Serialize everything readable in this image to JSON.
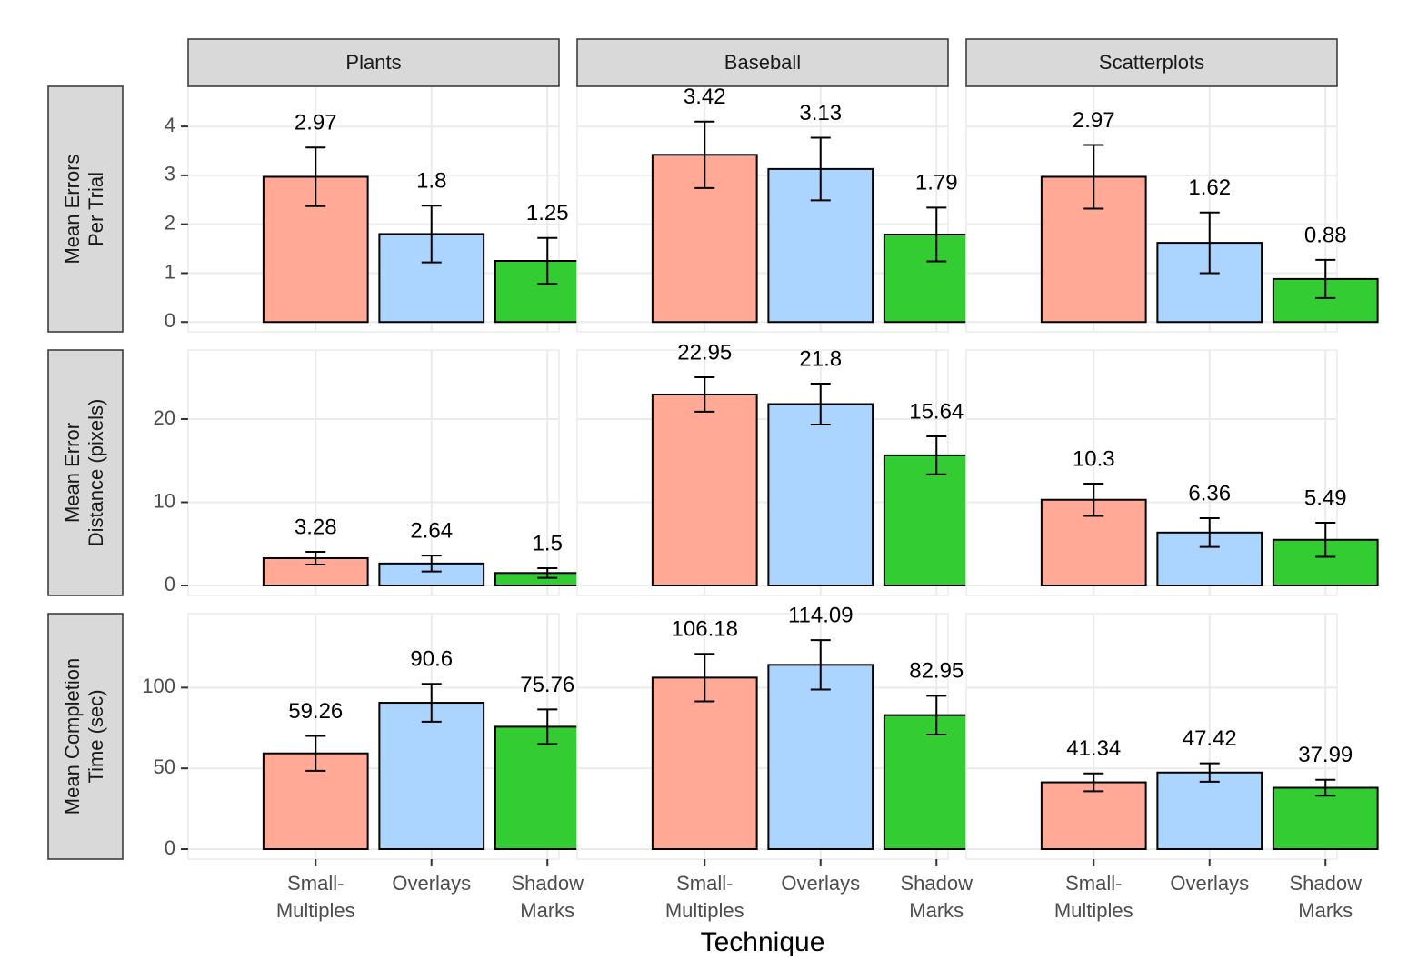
{
  "chart_data": [
    {
      "type": "bar",
      "title": "Plants",
      "ylabel": "Mean Errors\nPer Trial",
      "values": [
        2.97,
        1.8,
        1.25
      ],
      "errors": [
        0.6,
        0.58,
        0.47
      ],
      "colors": [
        "#ffa996",
        "#abd5ff",
        "#33cc33"
      ],
      "ylim": [
        -0.2,
        4.82
      ],
      "yticks": [
        0,
        1,
        2,
        3,
        4
      ]
    },
    {
      "type": "bar",
      "title": "Baseball",
      "values": [
        3.42,
        3.13,
        1.79
      ],
      "errors": [
        0.68,
        0.64,
        0.55
      ],
      "colors": [
        "#ffa996",
        "#abd5ff",
        "#33cc33"
      ],
      "ylim": [
        -0.2,
        4.82
      ],
      "yticks": [
        0,
        1,
        2,
        3,
        4
      ]
    },
    {
      "type": "bar",
      "title": "Scatterplots",
      "values": [
        2.97,
        1.62,
        0.88
      ],
      "errors": [
        0.65,
        0.62,
        0.39
      ],
      "colors": [
        "#ffa996",
        "#abd5ff",
        "#33cc33"
      ],
      "ylim": [
        -0.2,
        4.82
      ],
      "yticks": [
        0,
        1,
        2,
        3,
        4
      ]
    },
    {
      "type": "bar",
      "ylabel": "Mean Error\nDistance (pixels)",
      "values": [
        3.28,
        2.64,
        1.5
      ],
      "errors": [
        0.76,
        0.96,
        0.58
      ],
      "colors": [
        "#ffa996",
        "#abd5ff",
        "#33cc33"
      ],
      "ylim": [
        -1.2,
        28.3
      ],
      "yticks": [
        0,
        10,
        20
      ]
    },
    {
      "type": "bar",
      "values": [
        22.95,
        21.8,
        15.64
      ],
      "errors": [
        2.07,
        2.46,
        2.28
      ],
      "colors": [
        "#ffa996",
        "#abd5ff",
        "#33cc33"
      ],
      "ylim": [
        -1.2,
        28.3
      ],
      "yticks": [
        0,
        10,
        20
      ]
    },
    {
      "type": "bar",
      "values": [
        10.3,
        6.36,
        5.49
      ],
      "errors": [
        1.94,
        1.73,
        2.05
      ],
      "colors": [
        "#ffa996",
        "#abd5ff",
        "#33cc33"
      ],
      "ylim": [
        -1.2,
        28.3
      ],
      "yticks": [
        0,
        10,
        20
      ]
    },
    {
      "type": "bar",
      "ylabel": "Mean Completion\nTime (sec)",
      "categories": [
        "Small-\nMultiples",
        "Overlays",
        "Shadow\nMarks"
      ],
      "values": [
        59.26,
        90.6,
        75.76
      ],
      "errors": [
        10.8,
        11.7,
        10.7
      ],
      "colors": [
        "#ffa996",
        "#abd5ff",
        "#33cc33"
      ],
      "ylim": [
        -6.2,
        145.8
      ],
      "yticks": [
        0,
        50,
        100
      ]
    },
    {
      "type": "bar",
      "xlabel": "Technique",
      "categories": [
        "Small-\nMultiples",
        "Overlays",
        "Shadow\nMarks"
      ],
      "values": [
        106.18,
        114.09,
        82.95
      ],
      "errors": [
        14.7,
        15.3,
        12.0
      ],
      "colors": [
        "#ffa996",
        "#abd5ff",
        "#33cc33"
      ],
      "ylim": [
        -6.2,
        145.8
      ],
      "yticks": [
        0,
        50,
        100
      ]
    },
    {
      "type": "bar",
      "categories": [
        "Small-\nMultiples",
        "Overlays",
        "Shadow\nMarks"
      ],
      "values": [
        41.34,
        47.42,
        37.99
      ],
      "errors": [
        5.5,
        5.7,
        4.9
      ],
      "colors": [
        "#ffa996",
        "#abd5ff",
        "#33cc33"
      ],
      "ylim": [
        -6.2,
        145.8
      ],
      "yticks": [
        0,
        50,
        100
      ]
    }
  ]
}
